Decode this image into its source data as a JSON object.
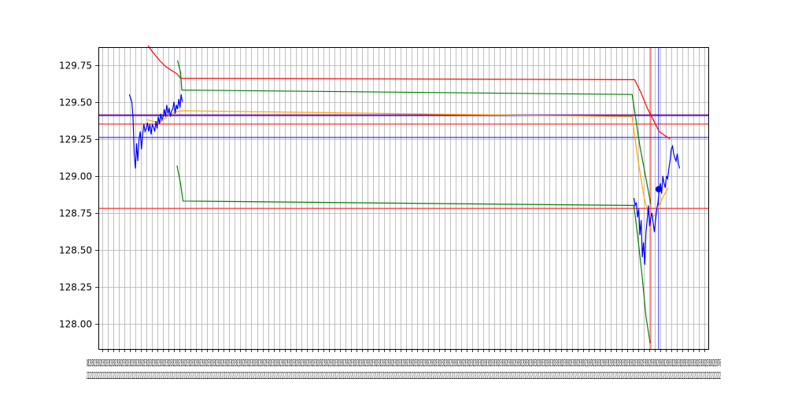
{
  "chart_data": {
    "type": "line",
    "title": "",
    "xlabel": "",
    "ylabel": "",
    "ylim": [
      127.83,
      129.87
    ],
    "xlim": [
      0,
      100
    ],
    "y_ticks": [
      "128.00",
      "128.25",
      "128.50",
      "128.75",
      "129.00",
      "129.25",
      "129.50",
      "129.75"
    ],
    "y_tick_values": [
      128.0,
      128.25,
      128.5,
      128.75,
      129.0,
      129.25,
      129.5,
      129.75
    ],
    "x_tick_count": 110,
    "x_tick_labels_row1": "0828382838283828382838283828382838283828382838283828382838283828382838283828382838283828382838283828382838283828382838283828382838283828382838283828382838283828382838283828382838283828382838283828382838283828382838283828382838283828382838283828382838283828382838283828382838283838283828382838283838283838283838283838283838283838283838283838283838283838283838283838283838283838283838283838283838283838283838283838283838283838283838283838283838283838283838283838283838283838283876",
    "x_tick_labels_row2": "2222222222222222222222222222222222222222222222222222222222222222222222222222222222222222222222222222222222222222222222222222222222222222222222222222222222222222222222222222222222222222222222222222222222222222222222222222222222222222222222222222222222222222222222222222222222222222222222222222222222222222222222222222222222222222222222222222222222222222222222222222222222222222222222222222222222222222222222222222222222222222222222222222222222222222222222222222222222222222222",
    "grid": true,
    "horizontal_lines": [
      {
        "y": 129.41,
        "color": "#0000ff",
        "width": 2.0
      },
      {
        "y": 129.41,
        "color": "#ff0000",
        "width": 1.0
      },
      {
        "y": 129.35,
        "color": "#ff0000",
        "width": 1.0
      },
      {
        "y": 129.26,
        "color": "#0000ff",
        "width": 1.0
      },
      {
        "y": 128.78,
        "color": "#ff0000",
        "width": 1.0
      }
    ],
    "vertical_lines": [
      {
        "x": 91.1,
        "color": "#ff0000"
      },
      {
        "x": 92.4,
        "color": "#0000ff"
      }
    ],
    "series": [
      {
        "color": "#ff0000",
        "x": [
          7.6,
          8.3,
          9.5,
          10.5,
          11.6,
          12.4,
          13.0,
          88.4,
          89.5,
          90.5,
          91.5,
          92.5,
          93.5,
          94.3
        ],
        "y": [
          129.88,
          129.84,
          129.78,
          129.74,
          129.71,
          129.69,
          129.66,
          129.65,
          129.56,
          129.46,
          129.38,
          129.3,
          129.27,
          129.25
        ]
      },
      {
        "color": "#008000",
        "x": [
          12.5,
          13.0,
          13.2,
          88.0,
          89.3,
          91.1
        ],
        "y": [
          129.78,
          129.7,
          129.58,
          129.55,
          129.2,
          128.81
        ]
      },
      {
        "color": "#008000",
        "x": [
          12.4,
          13.0,
          13.4,
          88.3,
          88.9,
          89.6,
          90.3,
          91.0
        ],
        "y": [
          129.07,
          128.95,
          128.83,
          128.8,
          128.6,
          128.35,
          128.05,
          127.87
        ]
      },
      {
        "color": "#ffa500",
        "x": [
          7.3,
          8.3,
          9.5,
          10.8,
          12.0,
          13.3,
          88.0,
          89.0,
          90.0,
          91.0,
          92.0,
          93.0,
          94.0
        ],
        "y": [
          129.38,
          129.37,
          129.36,
          129.4,
          129.43,
          129.44,
          129.4,
          129.1,
          128.85,
          128.7,
          128.75,
          128.85,
          128.92
        ]
      },
      {
        "color": "#0000ff",
        "x": [
          4.5,
          4.9,
          5.1,
          5.3,
          5.5,
          5.7,
          5.9,
          6.1,
          6.3,
          6.5,
          6.7,
          6.9,
          7.1,
          7.3,
          7.5,
          7.7,
          7.9,
          8.1,
          8.3,
          8.5,
          8.7,
          8.9,
          9.1,
          9.3,
          9.5,
          9.7,
          9.9,
          10.1,
          10.3,
          10.5,
          10.7,
          10.9,
          11.1,
          11.3,
          11.5,
          11.7,
          11.9,
          12.1,
          12.3,
          12.5,
          12.7,
          12.9,
          13.1,
          13.3
        ],
        "y": [
          129.55,
          129.5,
          129.4,
          129.15,
          129.05,
          129.22,
          129.1,
          129.25,
          129.3,
          129.18,
          129.28,
          129.35,
          129.3,
          129.32,
          129.36,
          129.3,
          129.35,
          129.28,
          129.35,
          129.33,
          129.3,
          129.37,
          129.32,
          129.4,
          129.35,
          129.42,
          129.38,
          129.4,
          129.45,
          129.4,
          129.48,
          129.42,
          129.46,
          129.4,
          129.44,
          129.45,
          129.5,
          129.42,
          129.48,
          129.45,
          129.52,
          129.46,
          129.55,
          129.5
        ]
      },
      {
        "color": "#0000ff",
        "x": [
          88.3,
          88.5,
          88.7,
          88.9,
          89.1,
          89.3,
          89.5,
          89.7,
          89.9,
          90.1,
          90.3,
          90.5,
          90.7,
          90.9,
          91.1,
          91.3,
          91.5,
          91.7,
          91.9,
          92.1,
          92.3,
          92.5,
          92.7,
          92.9,
          93.1,
          93.3,
          93.5,
          93.7,
          93.9,
          94.1,
          94.3,
          94.5,
          94.7,
          94.9,
          95.1,
          95.3,
          95.5,
          95.7,
          95.9
        ],
        "y": [
          128.85,
          128.8,
          128.82,
          128.72,
          128.78,
          128.6,
          128.7,
          128.45,
          128.55,
          128.4,
          128.62,
          128.7,
          128.8,
          128.66,
          128.72,
          128.75,
          128.68,
          128.62,
          128.7,
          128.78,
          128.82,
          128.9,
          128.95,
          128.88,
          129.0,
          128.95,
          128.92,
          129.0,
          128.98,
          129.05,
          129.1,
          129.18,
          129.2,
          129.15,
          129.12,
          129.1,
          129.15,
          129.08,
          129.05
        ]
      }
    ],
    "markers": [
      {
        "x": 92.4,
        "y": 128.91,
        "color": "#0000ff"
      }
    ]
  }
}
